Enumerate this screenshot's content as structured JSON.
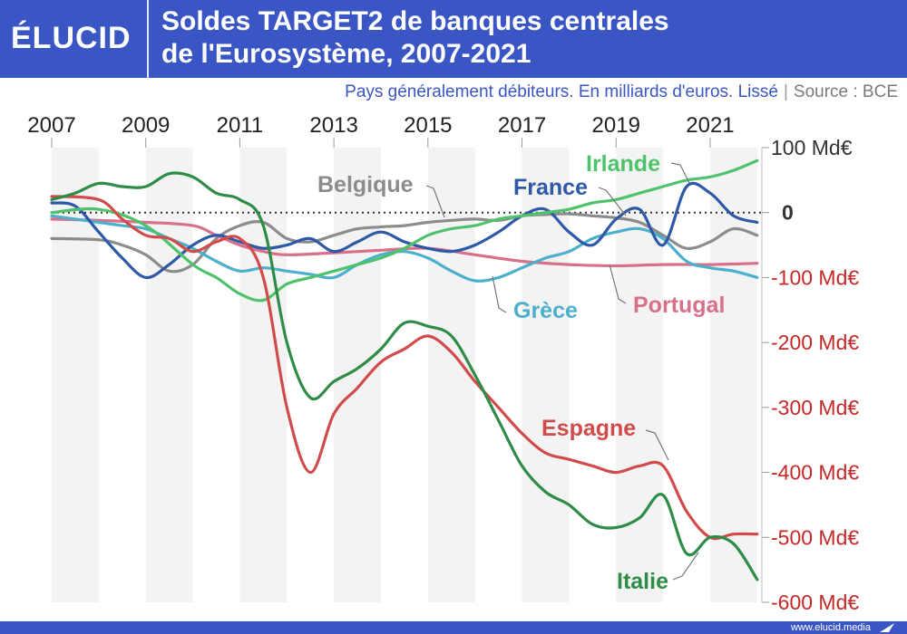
{
  "header": {
    "logo": "ÉLUCID",
    "title_line1": "Soldes TARGET2 de banques centrales",
    "title_line2": "de l'Eurosystème, 2007-2021",
    "subtitle": "Pays généralement débiteurs. En milliards d'euros. Lissé",
    "separator": "|",
    "source": "Source : BCE"
  },
  "footer": {
    "site": "www.elucid.media"
  },
  "colors": {
    "brand": "#3a56c4",
    "Belgique": "#8c8c8c",
    "France": "#2e59a6",
    "Irlande": "#4fc36b",
    "Grèce": "#4cb0cd",
    "Portugal": "#d9708a",
    "Espagne": "#d24b4b",
    "Italie": "#2f8c47",
    "negative_tick": "#c62828",
    "positive_tick": "#333333"
  },
  "chart_data": {
    "type": "line",
    "title": "Soldes TARGET2 de banques centrales de l'Eurosystème, 2007-2021",
    "ylabel": "",
    "xlim": [
      2007,
      2022.1
    ],
    "ylim": [
      -600,
      100
    ],
    "x_ticks": [
      "2007",
      "2009",
      "2011",
      "2013",
      "2015",
      "2017",
      "2019",
      "2021"
    ],
    "y_ticks": [
      {
        "value": 100,
        "label": "100 Md€"
      },
      {
        "value": 0,
        "label": "0"
      },
      {
        "value": -100,
        "label": "-100 Md€"
      },
      {
        "value": -200,
        "label": "-200 Md€"
      },
      {
        "value": -300,
        "label": "-300 Md€"
      },
      {
        "value": -400,
        "label": "-400 Md€"
      },
      {
        "value": -500,
        "label": "-500 Md€"
      },
      {
        "value": -600,
        "label": "-600 Md€"
      }
    ],
    "alternating_year_bands": true,
    "zero_line": "dotted",
    "series": [
      {
        "name": "Belgique",
        "x": [
          2007,
          2008,
          2008.5,
          2009,
          2009.5,
          2010,
          2010.5,
          2011,
          2011.5,
          2012,
          2012.5,
          2013,
          2013.5,
          2014,
          2014.5,
          2015,
          2015.5,
          2016,
          2016.5,
          2017,
          2017.5,
          2018,
          2018.5,
          2019,
          2019.5,
          2020,
          2020.5,
          2021,
          2021.5,
          2022
        ],
        "values": [
          -40,
          -42,
          -50,
          -65,
          -90,
          -80,
          -40,
          -20,
          -15,
          -40,
          -45,
          -35,
          -25,
          -22,
          -20,
          -15,
          -12,
          -10,
          -12,
          -5,
          -3,
          -2,
          -5,
          -8,
          -15,
          -35,
          -55,
          -45,
          -25,
          -35
        ]
      },
      {
        "name": "France",
        "x": [
          2007,
          2007.5,
          2008,
          2008.5,
          2009,
          2009.5,
          2010,
          2010.5,
          2011,
          2011.5,
          2012,
          2012.5,
          2013,
          2013.5,
          2014,
          2014.5,
          2015,
          2015.5,
          2016,
          2016.5,
          2017,
          2017.5,
          2018,
          2018.5,
          2019,
          2019.5,
          2020,
          2020.5,
          2021,
          2021.5,
          2022
        ],
        "values": [
          15,
          10,
          -30,
          -70,
          -100,
          -80,
          -50,
          -35,
          -45,
          -55,
          -50,
          -40,
          -60,
          -45,
          -30,
          -45,
          -55,
          -60,
          -50,
          -30,
          -5,
          5,
          -30,
          -50,
          -10,
          5,
          -50,
          40,
          30,
          -5,
          -15
        ]
      },
      {
        "name": "Irlande",
        "x": [
          2007,
          2008,
          2009,
          2010,
          2010.5,
          2011,
          2011.5,
          2012,
          2012.5,
          2013,
          2013.5,
          2014,
          2014.5,
          2015,
          2015.5,
          2016,
          2016.5,
          2017,
          2017.5,
          2018,
          2018.5,
          2019,
          2019.5,
          2020,
          2020.5,
          2021,
          2021.5,
          2022
        ],
        "values": [
          0,
          5,
          -20,
          -80,
          -100,
          -125,
          -135,
          -110,
          -100,
          -90,
          -80,
          -70,
          -55,
          -35,
          -25,
          -20,
          -10,
          -5,
          0,
          5,
          15,
          20,
          30,
          40,
          50,
          55,
          65,
          80
        ]
      },
      {
        "name": "Grèce",
        "x": [
          2007,
          2008,
          2008.5,
          2009,
          2009.5,
          2010,
          2010.5,
          2011,
          2011.5,
          2012,
          2012.5,
          2013,
          2013.5,
          2014,
          2014.5,
          2015,
          2015.5,
          2016,
          2016.5,
          2017,
          2017.5,
          2018,
          2018.5,
          2019,
          2019.5,
          2020,
          2020.5,
          2021,
          2021.5,
          2022
        ],
        "values": [
          -5,
          -15,
          -20,
          -25,
          -40,
          -55,
          -75,
          -90,
          -85,
          -90,
          -95,
          -100,
          -80,
          -65,
          -60,
          -70,
          -90,
          -105,
          -100,
          -85,
          -70,
          -60,
          -40,
          -30,
          -25,
          -40,
          -75,
          -85,
          -90,
          -100
        ]
      },
      {
        "name": "Portugal",
        "x": [
          2007,
          2008,
          2009,
          2010,
          2010.5,
          2011,
          2011.5,
          2012,
          2013,
          2014,
          2015,
          2016,
          2017,
          2018,
          2019,
          2020,
          2021,
          2022
        ],
        "values": [
          -10,
          -12,
          -15,
          -20,
          -35,
          -50,
          -60,
          -65,
          -62,
          -58,
          -55,
          -65,
          -75,
          -80,
          -82,
          -80,
          -80,
          -78
        ]
      },
      {
        "name": "Espagne",
        "x": [
          2007,
          2008,
          2008.5,
          2009,
          2009.5,
          2010,
          2010.5,
          2011,
          2011.5,
          2012,
          2012.5,
          2013,
          2013.5,
          2014,
          2014.5,
          2015,
          2015.5,
          2016,
          2016.5,
          2017,
          2017.5,
          2018,
          2018.5,
          2019,
          2019.5,
          2020,
          2020.5,
          2021,
          2021.5,
          2022
        ],
        "values": [
          25,
          20,
          -10,
          -35,
          -40,
          -60,
          -45,
          -40,
          -100,
          -300,
          -400,
          -310,
          -270,
          -230,
          -210,
          -190,
          -215,
          -260,
          -300,
          -340,
          -370,
          -380,
          -390,
          -400,
          -390,
          -390,
          -460,
          -500,
          -495,
          -495
        ]
      },
      {
        "name": "Italie",
        "x": [
          2007,
          2007.5,
          2008,
          2008.5,
          2009,
          2009.5,
          2010,
          2010.5,
          2011,
          2011.5,
          2012,
          2012.5,
          2013,
          2013.5,
          2014,
          2014.5,
          2015,
          2015.5,
          2016,
          2016.5,
          2017,
          2017.5,
          2018,
          2018.5,
          2019,
          2019.5,
          2020,
          2020.5,
          2021,
          2021.5,
          2022
        ],
        "values": [
          20,
          30,
          45,
          40,
          40,
          60,
          55,
          30,
          20,
          -20,
          -200,
          -285,
          -260,
          -240,
          -210,
          -170,
          -175,
          -190,
          -250,
          -320,
          -390,
          -430,
          -450,
          -480,
          -485,
          -470,
          -435,
          -525,
          -500,
          -510,
          -565
        ]
      }
    ],
    "labels": [
      {
        "series": "Belgique",
        "text": "Belgique"
      },
      {
        "series": "France",
        "text": "France"
      },
      {
        "series": "Irlande",
        "text": "Irlande"
      },
      {
        "series": "Grèce",
        "text": "Grèce"
      },
      {
        "series": "Portugal",
        "text": "Portugal"
      },
      {
        "series": "Espagne",
        "text": "Espagne"
      },
      {
        "series": "Italie",
        "text": "Italie"
      }
    ]
  }
}
